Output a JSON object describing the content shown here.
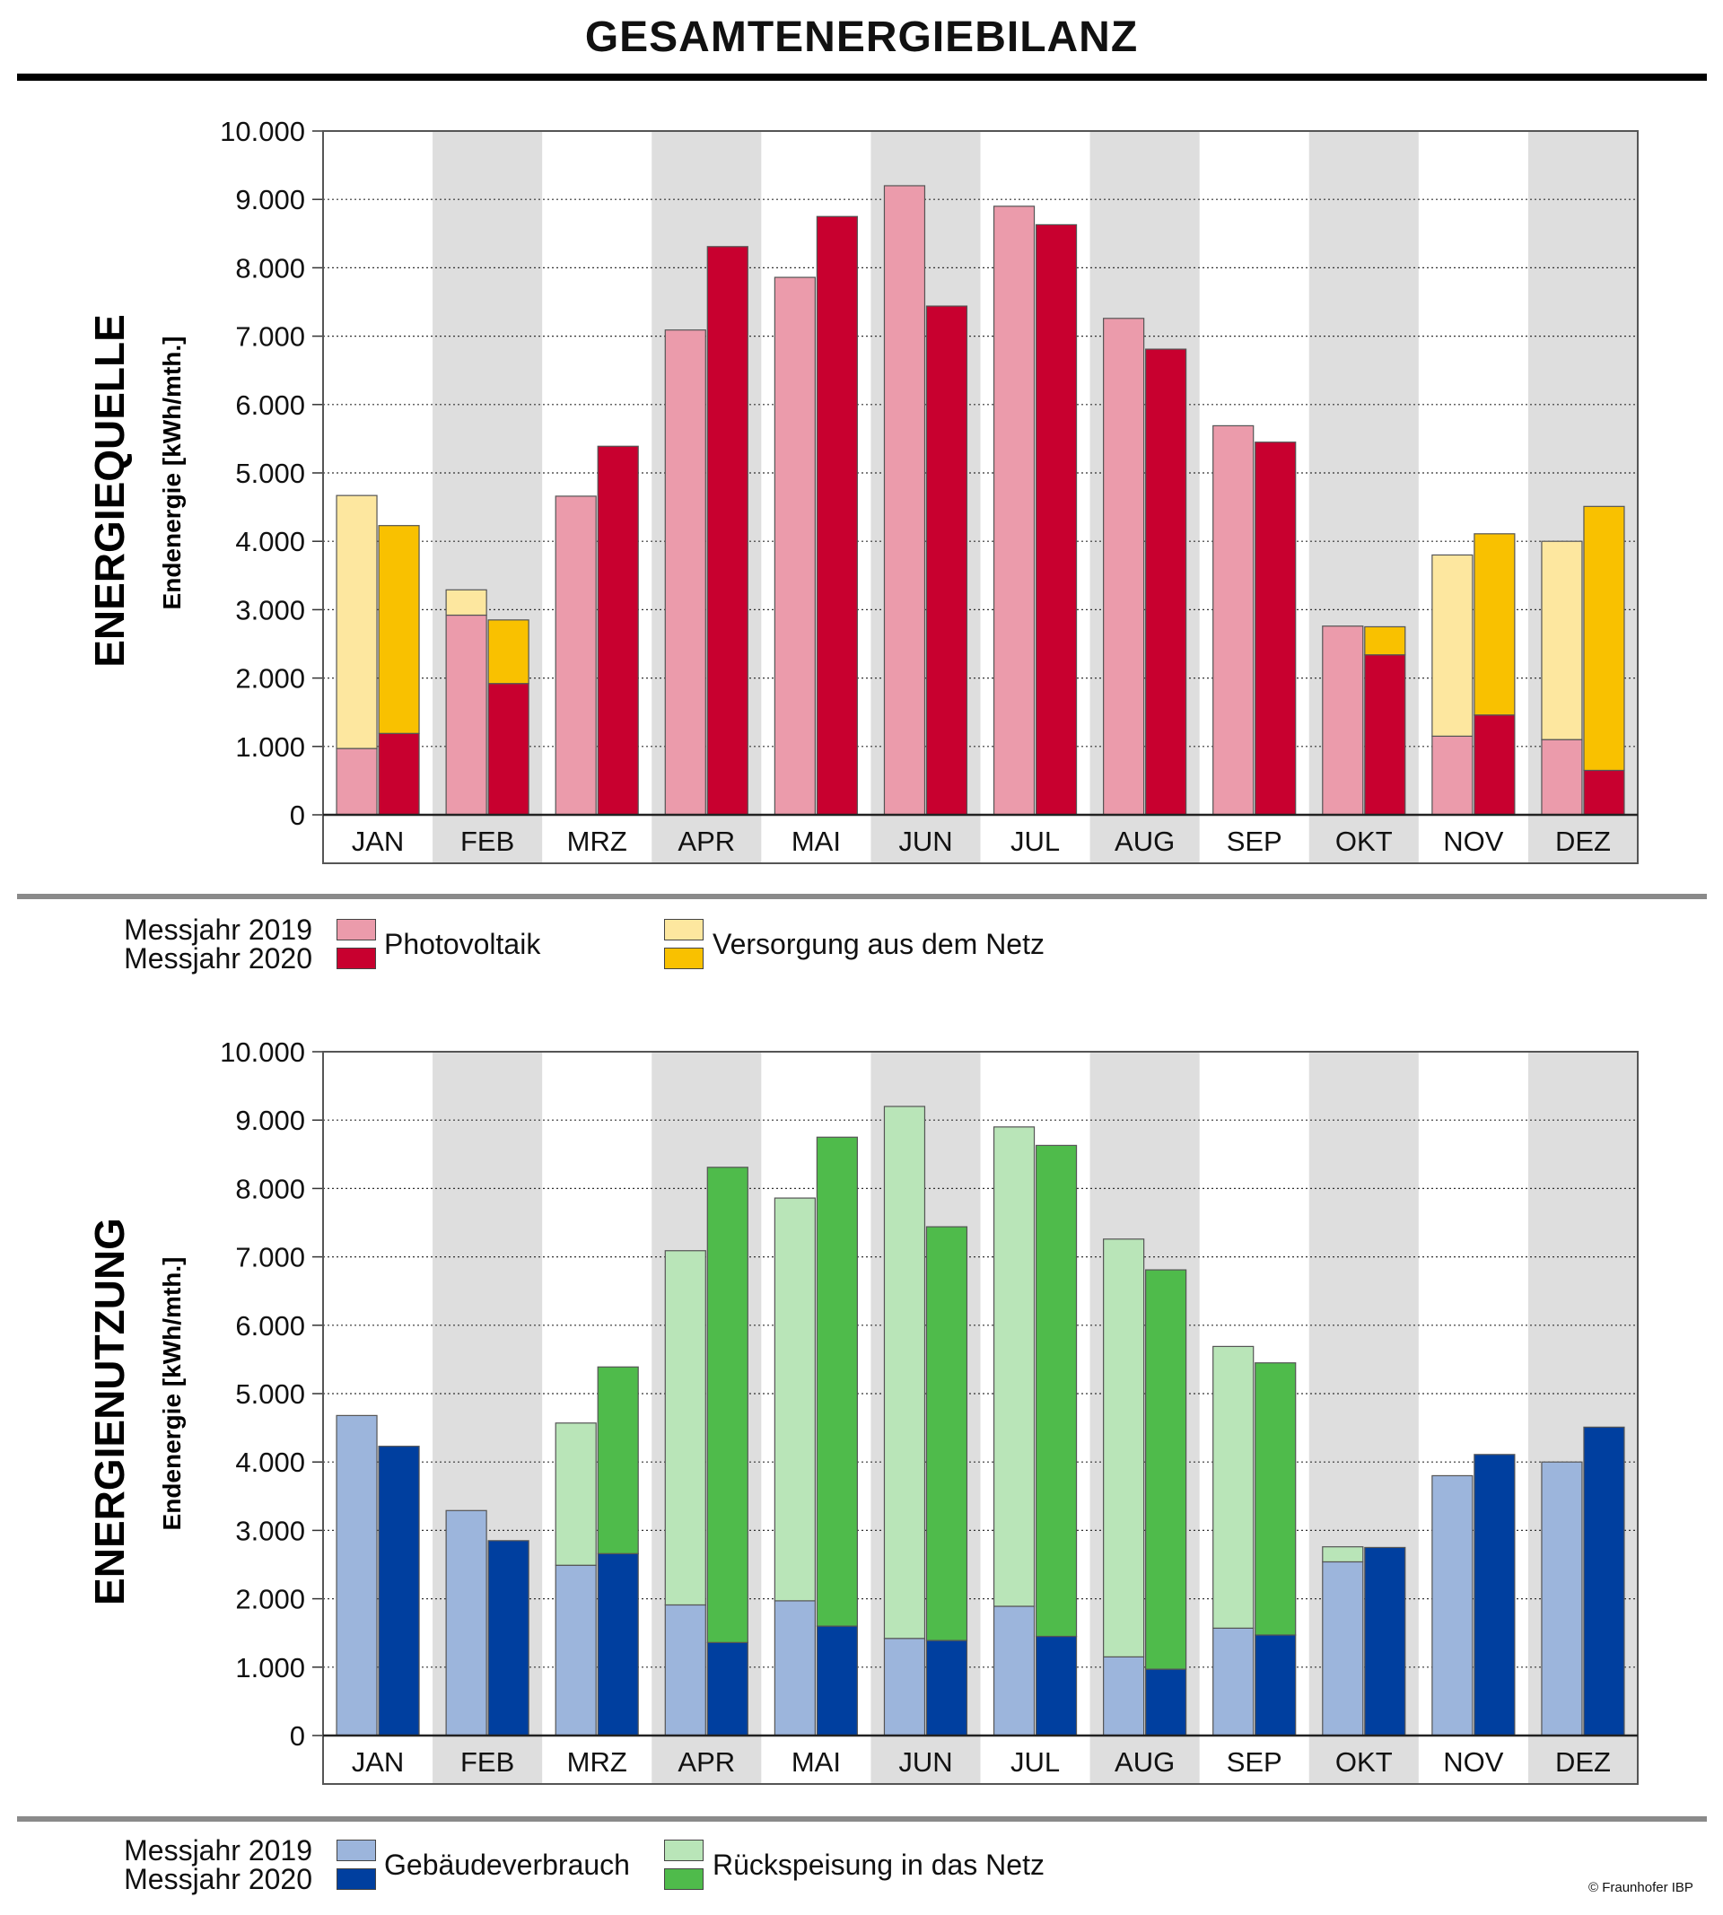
{
  "title": "GESAMTENERGIEBILANZ",
  "copyright": "© Fraunhofer IBP",
  "colors": {
    "pv_2019": "#eb9bab",
    "pv_2020": "#c8002f",
    "grid_2019": "#fde79f",
    "grid_2020": "#f9c100",
    "building_2019": "#9cb5dc",
    "building_2020": "#003f9f",
    "feed_2019": "#b9e5b8",
    "feed_2020": "#4fbb4b",
    "band_shade": "#dedede"
  },
  "legends": [
    {
      "year_2019": "Messjahr 2019",
      "year_2020": "Messjahr 2020",
      "item1": "Photovoltaik",
      "item2": "Versorgung aus dem Netz"
    },
    {
      "year_2019": "Messjahr 2019",
      "year_2020": "Messjahr 2020",
      "item1": "Gebäudeverbrauch",
      "item2": "Rückspeisung in das Netz"
    }
  ],
  "chart_data": [
    {
      "type": "bar",
      "stacked": true,
      "title": "ENERGIEQUELLE",
      "ylabel": "Endenergie [kWh/mth.]",
      "ylim": [
        0,
        10000
      ],
      "yticks": [
        "0",
        "1.000",
        "2.000",
        "3.000",
        "4.000",
        "5.000",
        "6.000",
        "7.000",
        "8.000",
        "9.000",
        "10.000"
      ],
      "categories": [
        "JAN",
        "FEB",
        "MRZ",
        "APR",
        "MAI",
        "JUN",
        "JUL",
        "AUG",
        "SEP",
        "OKT",
        "NOV",
        "DEZ"
      ],
      "grid": true,
      "series": [
        {
          "name": "Photovoltaik",
          "year": "Messjahr 2019",
          "group": "2019",
          "color_key": "pv_2019",
          "values": [
            970,
            2920,
            4660,
            7090,
            7860,
            9200,
            8900,
            7260,
            5690,
            2760,
            1150,
            1100
          ]
        },
        {
          "name": "Versorgung aus dem Netz",
          "year": "Messjahr 2019",
          "group": "2019",
          "color_key": "grid_2019",
          "values": [
            3700,
            370,
            0,
            0,
            0,
            0,
            0,
            0,
            0,
            0,
            2650,
            2900
          ]
        },
        {
          "name": "Photovoltaik",
          "year": "Messjahr 2020",
          "group": "2020",
          "color_key": "pv_2020",
          "values": [
            1190,
            1920,
            5390,
            8310,
            8750,
            7440,
            8630,
            6810,
            5450,
            2340,
            1460,
            650
          ]
        },
        {
          "name": "Versorgung aus dem Netz",
          "year": "Messjahr 2020",
          "group": "2020",
          "color_key": "grid_2020",
          "values": [
            3040,
            930,
            0,
            0,
            0,
            0,
            0,
            0,
            0,
            410,
            2650,
            3860
          ]
        }
      ]
    },
    {
      "type": "bar",
      "stacked": true,
      "title": "ENERGIENUTZUNG",
      "ylabel": "Endenergie [kWh/mth.]",
      "ylim": [
        0,
        10000
      ],
      "yticks": [
        "0",
        "1.000",
        "2.000",
        "3.000",
        "4.000",
        "5.000",
        "6.000",
        "7.000",
        "8.000",
        "9.000",
        "10.000"
      ],
      "categories": [
        "JAN",
        "FEB",
        "MRZ",
        "APR",
        "MAI",
        "JUN",
        "JUL",
        "AUG",
        "SEP",
        "OKT",
        "NOV",
        "DEZ"
      ],
      "grid": true,
      "series": [
        {
          "name": "Gebäudeverbrauch",
          "year": "Messjahr 2019",
          "group": "2019",
          "color_key": "building_2019",
          "values": [
            4680,
            3290,
            2490,
            1910,
            1970,
            1420,
            1890,
            1150,
            1570,
            2540,
            3800,
            4000
          ]
        },
        {
          "name": "Rückspeisung in das Netz",
          "year": "Messjahr 2019",
          "group": "2019",
          "color_key": "feed_2019",
          "values": [
            0,
            0,
            2080,
            5180,
            5890,
            7780,
            7010,
            6110,
            4120,
            220,
            0,
            0
          ]
        },
        {
          "name": "Gebäudeverbrauch",
          "year": "Messjahr 2020",
          "group": "2020",
          "color_key": "building_2020",
          "values": [
            4230,
            2850,
            2660,
            1360,
            1600,
            1390,
            1450,
            970,
            1470,
            2750,
            4110,
            4510
          ]
        },
        {
          "name": "Rückspeisung in das Netz",
          "year": "Messjahr 2020",
          "group": "2020",
          "color_key": "feed_2020",
          "values": [
            0,
            0,
            2730,
            6950,
            7150,
            6050,
            7180,
            5840,
            3980,
            0,
            0,
            0
          ]
        }
      ]
    }
  ]
}
